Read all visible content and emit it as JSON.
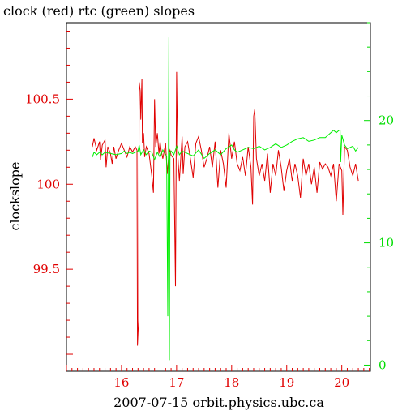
{
  "chart_data": {
    "type": "line",
    "title": "clock (red) rtc (green) slopes",
    "xlabel": "2007-07-15 orbit.physics.ubc.ca",
    "ylabel": "clockslope",
    "x_ticks": [
      "16",
      "17",
      "18",
      "19",
      "20"
    ],
    "y_left_ticks": [
      "99.5",
      "100",
      "100.5"
    ],
    "y_right_ticks": [
      "0",
      "10",
      "20"
    ],
    "xlim": [
      15.0,
      20.52
    ],
    "ylim_left": [
      98.9,
      100.95
    ],
    "ylim_right": [
      -0.5,
      28.0
    ],
    "grid": false,
    "colors": {
      "axes": "#000000",
      "left_axis": "#e00000",
      "right_axis": "#00dd00",
      "clock": "#e00000",
      "rtc": "#00ee00"
    },
    "series": [
      {
        "name": "clock",
        "axis": "left",
        "x": [
          15.47,
          15.5,
          15.55,
          15.6,
          15.62,
          15.65,
          15.7,
          15.72,
          15.75,
          15.8,
          15.83,
          15.86,
          15.9,
          15.95,
          16.0,
          16.05,
          16.1,
          16.15,
          16.2,
          16.25,
          16.28,
          16.29,
          16.31,
          16.32,
          16.34,
          16.35,
          16.37,
          16.38,
          16.4,
          16.42,
          16.45,
          16.5,
          16.55,
          16.58,
          16.6,
          16.62,
          16.65,
          16.68,
          16.7,
          16.72,
          16.75,
          16.8,
          16.83,
          16.86,
          16.88,
          16.9,
          16.95,
          16.98,
          17.0,
          17.02,
          17.05,
          17.1,
          17.12,
          17.15,
          17.2,
          17.25,
          17.3,
          17.35,
          17.4,
          17.45,
          17.5,
          17.55,
          17.6,
          17.65,
          17.7,
          17.75,
          17.8,
          17.85,
          17.9,
          17.95,
          18.0,
          18.05,
          18.1,
          18.15,
          18.2,
          18.25,
          18.3,
          18.35,
          18.38,
          18.4,
          18.42,
          18.45,
          18.5,
          18.55,
          18.6,
          18.65,
          18.7,
          18.75,
          18.8,
          18.85,
          18.9,
          18.95,
          19.0,
          19.05,
          19.1,
          19.15,
          19.2,
          19.25,
          19.3,
          19.35,
          19.4,
          19.45,
          19.5,
          19.55,
          19.6,
          19.65,
          19.7,
          19.75,
          19.8,
          19.85,
          19.9,
          19.95,
          20.0,
          20.02,
          20.05,
          20.1,
          20.15,
          20.2,
          20.25,
          20.3
        ],
        "y": [
          100.22,
          100.27,
          100.2,
          100.25,
          100.14,
          100.23,
          100.26,
          100.1,
          100.22,
          100.18,
          100.12,
          100.22,
          100.15,
          100.2,
          100.24,
          100.2,
          100.16,
          100.22,
          100.19,
          100.22,
          100.2,
          99.05,
          99.2,
          100.6,
          100.55,
          100.38,
          100.62,
          100.24,
          100.3,
          100.16,
          100.22,
          100.18,
          100.05,
          99.95,
          100.5,
          100.22,
          100.3,
          100.18,
          100.25,
          100.2,
          100.15,
          100.24,
          100.06,
          100.18,
          100.2,
          100.17,
          100.15,
          99.4,
          100.66,
          100.18,
          100.02,
          100.28,
          100.06,
          100.22,
          100.25,
          100.15,
          100.04,
          100.24,
          100.28,
          100.2,
          100.1,
          100.15,
          100.22,
          100.1,
          100.25,
          99.98,
          100.2,
          100.12,
          99.98,
          100.3,
          100.15,
          100.25,
          100.12,
          100.08,
          100.16,
          100.05,
          100.22,
          100.1,
          99.88,
          100.4,
          100.44,
          100.15,
          100.05,
          100.12,
          100.02,
          100.18,
          99.95,
          100.12,
          100.05,
          100.2,
          100.1,
          99.96,
          100.08,
          100.15,
          100.02,
          100.12,
          100.05,
          99.92,
          100.15,
          100.05,
          100.12,
          100.0,
          100.1,
          99.95,
          100.13,
          100.09,
          100.12,
          100.1,
          100.05,
          100.12,
          99.9,
          100.12,
          100.08,
          99.82,
          100.22,
          100.2,
          100.1,
          100.05,
          100.12,
          100.02
        ],
        "color": "#e00000"
      },
      {
        "name": "rtc",
        "axis": "right",
        "x": [
          15.47,
          15.5,
          15.55,
          15.6,
          15.65,
          15.7,
          15.8,
          15.9,
          16.0,
          16.05,
          16.1,
          16.15,
          16.2,
          16.25,
          16.3,
          16.32,
          16.35,
          16.4,
          16.45,
          16.5,
          16.55,
          16.6,
          16.65,
          16.7,
          16.75,
          16.8,
          16.82,
          16.84,
          16.86,
          16.87,
          16.88,
          16.9,
          16.95,
          17.0,
          17.05,
          17.1,
          17.2,
          17.3,
          17.4,
          17.5,
          17.6,
          17.7,
          17.8,
          17.9,
          18.0,
          18.05,
          18.1,
          18.2,
          18.3,
          18.4,
          18.5,
          18.6,
          18.7,
          18.8,
          18.9,
          19.0,
          19.1,
          19.2,
          19.3,
          19.4,
          19.5,
          19.6,
          19.7,
          19.8,
          19.85,
          19.9,
          19.95,
          19.97,
          19.98,
          20.0,
          20.05,
          20.1,
          20.15,
          20.2,
          20.25,
          20.3
        ],
        "y": [
          17.0,
          17.4,
          17.2,
          17.4,
          17.2,
          17.4,
          17.3,
          17.2,
          17.3,
          17.5,
          17.3,
          17.4,
          17.3,
          17.4,
          17.5,
          18.0,
          17.2,
          17.6,
          17.2,
          17.5,
          17.4,
          16.8,
          17.4,
          17.0,
          17.6,
          17.2,
          17.1,
          4.0,
          26.8,
          0.4,
          17.3,
          17.5,
          17.2,
          17.9,
          17.2,
          17.5,
          17.3,
          17.1,
          17.6,
          16.9,
          17.3,
          17.6,
          17.2,
          17.7,
          18.0,
          17.6,
          17.4,
          17.6,
          17.8,
          17.7,
          17.9,
          17.6,
          17.8,
          18.1,
          17.8,
          18.0,
          18.3,
          18.5,
          18.6,
          18.3,
          18.4,
          18.6,
          18.6,
          19.0,
          19.2,
          19.0,
          19.2,
          19.2,
          16.6,
          18.8,
          18.0,
          17.7,
          17.8,
          17.9,
          17.5,
          17.8
        ],
        "color": "#00ee00"
      }
    ]
  }
}
